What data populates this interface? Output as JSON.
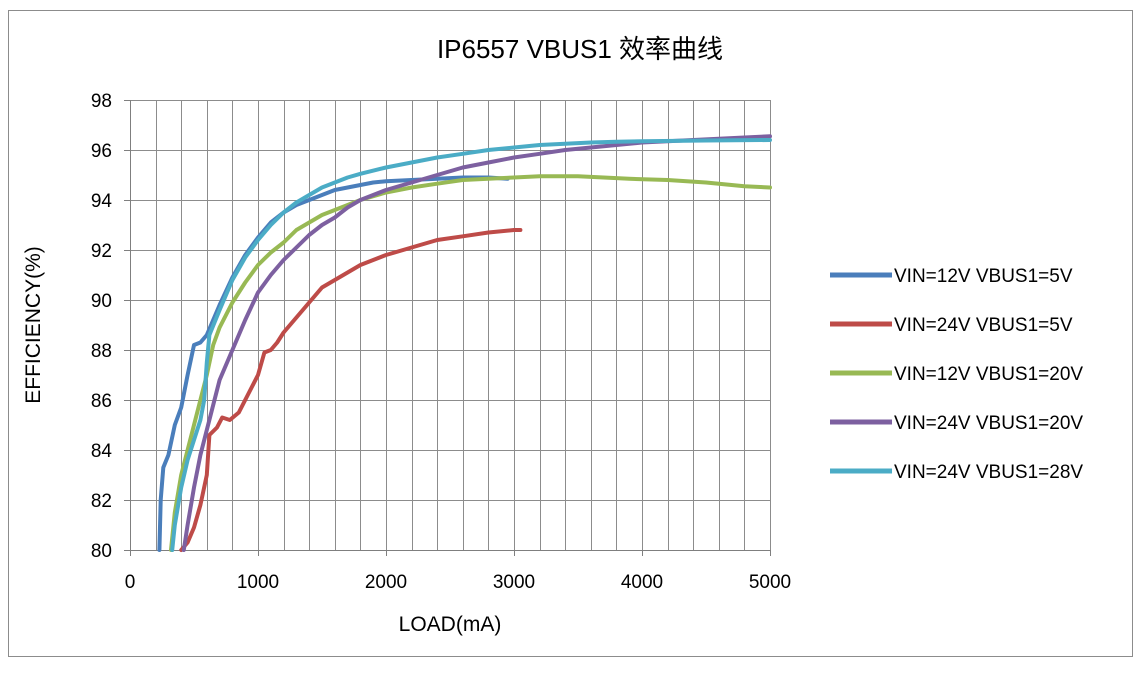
{
  "chart_data": {
    "type": "line",
    "title": "IP6557  VBUS1 效率曲线",
    "xlabel": "LOAD(mA)",
    "ylabel": "EFFICIENCY(%)",
    "xlim": [
      0,
      5000
    ],
    "ylim": [
      80,
      98
    ],
    "xticks": [
      0,
      1000,
      2000,
      3000,
      4000,
      5000
    ],
    "yticks": [
      80,
      82,
      84,
      86,
      88,
      90,
      92,
      94,
      96,
      98
    ],
    "x_minor_step": 200,
    "grid": true,
    "legend_position": "right",
    "series": [
      {
        "name": "VIN=12V VBUS1=5V",
        "color": "#4a7ebb",
        "points": [
          [
            230,
            80
          ],
          [
            240,
            82
          ],
          [
            260,
            83.3
          ],
          [
            300,
            83.8
          ],
          [
            350,
            85
          ],
          [
            400,
            85.7
          ],
          [
            450,
            87
          ],
          [
            500,
            88.2
          ],
          [
            550,
            88.3
          ],
          [
            600,
            88.6
          ],
          [
            700,
            89.8
          ],
          [
            800,
            90.9
          ],
          [
            900,
            91.8
          ],
          [
            1000,
            92.5
          ],
          [
            1100,
            93.1
          ],
          [
            1200,
            93.5
          ],
          [
            1300,
            93.8
          ],
          [
            1400,
            94.0
          ],
          [
            1500,
            94.2
          ],
          [
            1600,
            94.4
          ],
          [
            1700,
            94.5
          ],
          [
            1800,
            94.6
          ],
          [
            1900,
            94.7
          ],
          [
            2000,
            94.75
          ],
          [
            2200,
            94.8
          ],
          [
            2400,
            94.85
          ],
          [
            2600,
            94.9
          ],
          [
            2800,
            94.9
          ],
          [
            2950,
            94.85
          ]
        ]
      },
      {
        "name": "VIN=24V VBUS1=5V",
        "color": "#be4b48",
        "points": [
          [
            400,
            80
          ],
          [
            450,
            80.3
          ],
          [
            500,
            80.9
          ],
          [
            550,
            81.8
          ],
          [
            600,
            83
          ],
          [
            620,
            84.6
          ],
          [
            680,
            84.9
          ],
          [
            720,
            85.3
          ],
          [
            780,
            85.2
          ],
          [
            850,
            85.5
          ],
          [
            900,
            86.0
          ],
          [
            950,
            86.5
          ],
          [
            1000,
            87.0
          ],
          [
            1050,
            87.9
          ],
          [
            1100,
            88.0
          ],
          [
            1150,
            88.3
          ],
          [
            1200,
            88.7
          ],
          [
            1300,
            89.3
          ],
          [
            1400,
            89.9
          ],
          [
            1500,
            90.5
          ],
          [
            1600,
            90.8
          ],
          [
            1700,
            91.1
          ],
          [
            1800,
            91.4
          ],
          [
            1900,
            91.6
          ],
          [
            2000,
            91.8
          ],
          [
            2200,
            92.1
          ],
          [
            2400,
            92.4
          ],
          [
            2600,
            92.55
          ],
          [
            2800,
            92.7
          ],
          [
            3000,
            92.8
          ],
          [
            3050,
            92.8
          ]
        ]
      },
      {
        "name": "VIN=12V VBUS1=20V",
        "color": "#98b954",
        "points": [
          [
            320,
            80
          ],
          [
            350,
            81.5
          ],
          [
            400,
            83
          ],
          [
            450,
            84
          ],
          [
            500,
            85
          ],
          [
            550,
            86
          ],
          [
            600,
            87
          ],
          [
            650,
            88.2
          ],
          [
            700,
            88.9
          ],
          [
            800,
            89.9
          ],
          [
            900,
            90.7
          ],
          [
            1000,
            91.4
          ],
          [
            1100,
            91.9
          ],
          [
            1200,
            92.3
          ],
          [
            1300,
            92.8
          ],
          [
            1400,
            93.1
          ],
          [
            1500,
            93.4
          ],
          [
            1600,
            93.6
          ],
          [
            1700,
            93.8
          ],
          [
            1800,
            94.0
          ],
          [
            2000,
            94.3
          ],
          [
            2200,
            94.5
          ],
          [
            2400,
            94.65
          ],
          [
            2600,
            94.8
          ],
          [
            2800,
            94.85
          ],
          [
            3000,
            94.9
          ],
          [
            3200,
            94.95
          ],
          [
            3500,
            94.95
          ],
          [
            3700,
            94.9
          ],
          [
            3900,
            94.85
          ],
          [
            4200,
            94.8
          ],
          [
            4500,
            94.7
          ],
          [
            4800,
            94.55
          ],
          [
            5000,
            94.5
          ]
        ]
      },
      {
        "name": "VIN=24V VBUS1=20V",
        "color": "#7d60a0",
        "points": [
          [
            420,
            80
          ],
          [
            450,
            81
          ],
          [
            500,
            82.5
          ],
          [
            550,
            83.8
          ],
          [
            600,
            84.8
          ],
          [
            650,
            85.8
          ],
          [
            700,
            86.8
          ],
          [
            800,
            88
          ],
          [
            900,
            89.2
          ],
          [
            1000,
            90.3
          ],
          [
            1100,
            91.0
          ],
          [
            1200,
            91.6
          ],
          [
            1300,
            92.1
          ],
          [
            1400,
            92.6
          ],
          [
            1500,
            93.0
          ],
          [
            1600,
            93.3
          ],
          [
            1700,
            93.7
          ],
          [
            1800,
            94.0
          ],
          [
            2000,
            94.4
          ],
          [
            2200,
            94.7
          ],
          [
            2400,
            95.0
          ],
          [
            2600,
            95.3
          ],
          [
            2800,
            95.5
          ],
          [
            3000,
            95.7
          ],
          [
            3200,
            95.85
          ],
          [
            3400,
            96.0
          ],
          [
            3600,
            96.1
          ],
          [
            3800,
            96.2
          ],
          [
            4000,
            96.3
          ],
          [
            4200,
            96.35
          ],
          [
            4400,
            96.4
          ],
          [
            4600,
            96.45
          ],
          [
            4800,
            96.5
          ],
          [
            5000,
            96.55
          ]
        ]
      },
      {
        "name": "VIN=24V VBUS1=28V",
        "color": "#4bacc6",
        "points": [
          [
            330,
            80
          ],
          [
            350,
            81
          ],
          [
            400,
            82.5
          ],
          [
            450,
            83.6
          ],
          [
            500,
            84.4
          ],
          [
            550,
            85.2
          ],
          [
            580,
            86
          ],
          [
            600,
            87.5
          ],
          [
            620,
            88.6
          ],
          [
            700,
            89.6
          ],
          [
            800,
            90.8
          ],
          [
            900,
            91.7
          ],
          [
            1000,
            92.4
          ],
          [
            1100,
            93.0
          ],
          [
            1200,
            93.5
          ],
          [
            1300,
            93.9
          ],
          [
            1400,
            94.2
          ],
          [
            1500,
            94.5
          ],
          [
            1600,
            94.7
          ],
          [
            1700,
            94.9
          ],
          [
            1800,
            95.05
          ],
          [
            2000,
            95.3
          ],
          [
            2200,
            95.5
          ],
          [
            2400,
            95.7
          ],
          [
            2600,
            95.85
          ],
          [
            2800,
            96.0
          ],
          [
            3000,
            96.1
          ],
          [
            3200,
            96.2
          ],
          [
            3400,
            96.25
          ],
          [
            3600,
            96.3
          ],
          [
            3800,
            96.33
          ],
          [
            4000,
            96.35
          ],
          [
            4500,
            96.38
          ],
          [
            5000,
            96.4
          ]
        ]
      }
    ]
  }
}
